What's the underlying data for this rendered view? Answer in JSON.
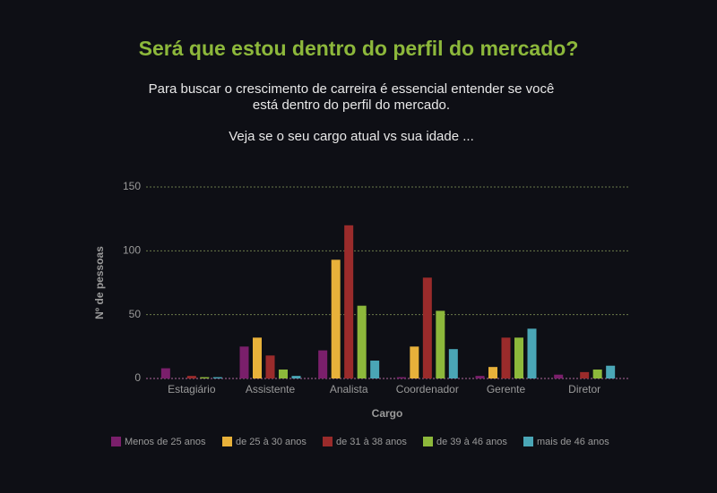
{
  "chart_data": {
    "type": "bar",
    "title": "Será que estou dentro do perfil do mercado?",
    "subtitle": [
      "Para buscar o crescimento de carreira é essencial entender se você",
      "está dentro do perfil do mercado."
    ],
    "note": "Veja se o seu cargo atual vs sua idade ...",
    "x_label": "Cargo",
    "y_label": "Nº de pessoas",
    "categories": [
      "Estagiário",
      "Assistente",
      "Analista",
      "Coordenador",
      "Gerente",
      "Diretor"
    ],
    "series": [
      {
        "name": "Menos de 25 anos",
        "color": "#7a1f6b",
        "values": [
          8,
          25,
          22,
          1,
          2,
          3
        ]
      },
      {
        "name": "de 25 à 30 anos",
        "color": "#e8b13a",
        "values": [
          0,
          32,
          93,
          25,
          9,
          0
        ]
      },
      {
        "name": "de 31 à 38 anos",
        "color": "#9a2b2b",
        "values": [
          2,
          18,
          120,
          79,
          32,
          5
        ]
      },
      {
        "name": "de 39 à 46 anos",
        "color": "#8db83b",
        "values": [
          1,
          7,
          57,
          53,
          32,
          7
        ]
      },
      {
        "name": "mais de 46 anos",
        "color": "#4aa6b6",
        "values": [
          1,
          2,
          14,
          23,
          39,
          10
        ]
      }
    ],
    "ylim": [
      0,
      150
    ],
    "yticks": [
      0,
      50,
      100,
      150
    ],
    "grid": true
  }
}
